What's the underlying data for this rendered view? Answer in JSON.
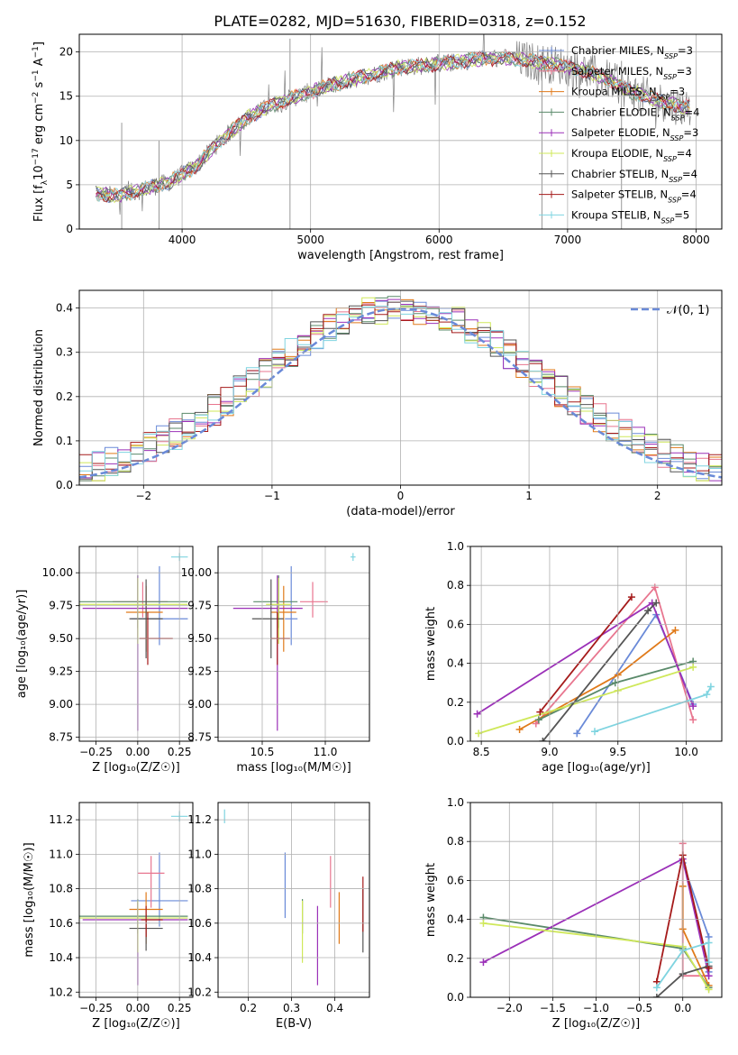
{
  "figure": {
    "title": "PLATE=0282, MJD=51630, FIBERID=0318, z=0.152"
  },
  "models": [
    {
      "name": "Chabrier MILES",
      "nssp": "3",
      "color": "#6a8ad8"
    },
    {
      "name": "Salpeter MILES",
      "nssp": "3",
      "color": "#e8768f"
    },
    {
      "name": "Kroupa MILES",
      "nssp": "3",
      "color": "#e07a1a"
    },
    {
      "name": "Chabrier ELODIE",
      "nssp": "4",
      "color": "#5a8a6a"
    },
    {
      "name": "Salpeter ELODIE",
      "nssp": "3",
      "color": "#9b30b8"
    },
    {
      "name": "Kroupa ELODIE",
      "nssp": "4",
      "color": "#cfe85a"
    },
    {
      "name": "Chabrier STELIB",
      "nssp": "4",
      "color": "#555555"
    },
    {
      "name": "Salpeter STELIB",
      "nssp": "4",
      "color": "#a51a1a"
    },
    {
      "name": "Kroupa STELIB",
      "nssp": "5",
      "color": "#7fd4e0"
    }
  ],
  "chart_data": [
    {
      "id": "spectrum",
      "type": "line",
      "xlabel": "wavelength [Angstrom, rest frame]",
      "ylabel": "Flux [f",
      "xlim": [
        3200,
        8200
      ],
      "ylim": [
        0,
        22
      ],
      "xticks": [
        4000,
        5000,
        6000,
        7000,
        8000
      ],
      "yticks": [
        0,
        5,
        10,
        15,
        20
      ],
      "data_color": "#808080",
      "x": [
        3350,
        3500,
        3700,
        3900,
        4100,
        4300,
        4500,
        4700,
        4900,
        5100,
        5300,
        5500,
        5700,
        5900,
        6100,
        6300,
        6500,
        6700,
        6900,
        7100,
        7300,
        7500,
        7700,
        7900
      ],
      "y": [
        4.0,
        3.7,
        4.5,
        5.3,
        7.0,
        10.0,
        12.5,
        14.0,
        15.0,
        16.0,
        16.8,
        17.5,
        18.3,
        18.5,
        18.8,
        19.2,
        19.3,
        19.0,
        18.6,
        18.0,
        17.0,
        15.5,
        14.5,
        13.8
      ],
      "legend": "upper right"
    },
    {
      "id": "residuals",
      "type": "area",
      "xlabel": "(data-model)/error",
      "ylabel": "Normed distribution",
      "xlim": [
        -2.5,
        2.5
      ],
      "ylim": [
        0,
        0.44
      ],
      "xticks": [
        -2,
        -1,
        0,
        1,
        2
      ],
      "yticks": [
        0.0,
        0.1,
        0.2,
        0.3,
        0.4
      ],
      "bin_width": 0.1,
      "normal_curve": {
        "label": "𝒩(0, 1)",
        "mean": 0,
        "sigma": 1,
        "color": "#6a8ad8"
      },
      "legend": "upper right"
    },
    {
      "id": "age_vs_Z",
      "type": "scatter",
      "xlabel": "Z [log₁₀(Z/Z☉)]",
      "ylabel": "age  [log₁₀(age/yr)]",
      "xlim": [
        -0.35,
        0.33
      ],
      "ylim": [
        8.72,
        10.2
      ],
      "xticks": [
        -0.25,
        0.0,
        0.25
      ],
      "yticks": [
        8.75,
        9.0,
        9.25,
        9.5,
        9.75,
        10.0
      ],
      "points": [
        {
          "model": 0,
          "x": 0.13,
          "y": 9.65,
          "xerr": [
            0.17,
            0.17
          ],
          "yerr": [
            0.2,
            0.4
          ]
        },
        {
          "model": 1,
          "x": 0.03,
          "y": 9.78,
          "xerr": [
            0.18,
            0.15
          ],
          "yerr": [
            0.12,
            0.15
          ]
        },
        {
          "model": 2,
          "x": 0.05,
          "y": 9.7,
          "xerr": [
            0.12,
            0.1
          ],
          "yerr": [
            0.3,
            0.2
          ]
        },
        {
          "model": 3,
          "x": 0.0,
          "y": 9.78,
          "xerr": [
            0.35,
            0.3
          ],
          "yerr": [
            0.2,
            0.2
          ]
        },
        {
          "model": 4,
          "x": 0.0,
          "y": 9.73,
          "xerr": [
            0.33,
            0.3
          ],
          "yerr": [
            0.93,
            0.25
          ]
        },
        {
          "model": 5,
          "x": 0.0,
          "y": 9.76,
          "xerr": [
            0.35,
            0.3
          ],
          "yerr": [
            0.3,
            0.2
          ]
        },
        {
          "model": 6,
          "x": 0.05,
          "y": 9.65,
          "xerr": [
            0.1,
            0.1
          ],
          "yerr": [
            0.3,
            0.3
          ]
        },
        {
          "model": 7,
          "x": 0.06,
          "y": 9.5,
          "xerr": [
            0.05,
            0.15
          ],
          "yerr": [
            0.2,
            0.2
          ]
        },
        {
          "model": 8,
          "x": 0.25,
          "y": 10.12,
          "xerr": [
            0.05,
            0.05
          ],
          "yerr": [
            0.03,
            0.03
          ]
        }
      ]
    },
    {
      "id": "age_vs_mass",
      "type": "scatter",
      "xlabel": "mass [log₁₀(M/M☉)]",
      "ylabel": "",
      "xlim": [
        10.15,
        11.35
      ],
      "ylim": [
        8.72,
        10.2
      ],
      "xticks": [
        10.5,
        11.0
      ],
      "yticks": [
        8.75,
        9.0,
        9.25,
        9.5,
        9.75,
        10.0
      ],
      "points": [
        {
          "model": 0,
          "x": 10.73,
          "y": 9.65,
          "xerr": [
            0.05,
            0.05
          ],
          "yerr": [
            0.2,
            0.4
          ]
        },
        {
          "model": 1,
          "x": 10.9,
          "y": 9.78,
          "xerr": [
            0.1,
            0.12
          ],
          "yerr": [
            0.12,
            0.15
          ]
        },
        {
          "model": 2,
          "x": 10.67,
          "y": 9.7,
          "xerr": [
            0.1,
            0.1
          ],
          "yerr": [
            0.3,
            0.2
          ]
        },
        {
          "model": 3,
          "x": 10.63,
          "y": 9.78,
          "xerr": [
            0.2,
            0.15
          ],
          "yerr": [
            0.2,
            0.2
          ]
        },
        {
          "model": 4,
          "x": 10.62,
          "y": 9.73,
          "xerr": [
            0.35,
            0.2
          ],
          "yerr": [
            0.93,
            0.25
          ]
        },
        {
          "model": 5,
          "x": 10.63,
          "y": 9.76,
          "xerr": [
            0.1,
            0.1
          ],
          "yerr": [
            0.3,
            0.2
          ]
        },
        {
          "model": 6,
          "x": 10.57,
          "y": 9.65,
          "xerr": [
            0.15,
            0.1
          ],
          "yerr": [
            0.3,
            0.3
          ]
        },
        {
          "model": 7,
          "x": 10.62,
          "y": 9.5,
          "xerr": [
            0.05,
            0.1
          ],
          "yerr": [
            0.2,
            0.2
          ]
        },
        {
          "model": 8,
          "x": 11.22,
          "y": 10.12,
          "xerr": [
            0.02,
            0.02
          ],
          "yerr": [
            0.03,
            0.03
          ]
        }
      ]
    },
    {
      "id": "massweight_vs_age",
      "type": "line",
      "xlabel": "age  [log₁₀(age/yr)]",
      "ylabel": "mass weight",
      "xlim": [
        8.42,
        10.26
      ],
      "ylim": [
        0,
        1.0
      ],
      "xticks": [
        8.5,
        9.0,
        9.5,
        10.0
      ],
      "yticks": [
        0.0,
        0.2,
        0.4,
        0.6,
        0.8,
        1.0
      ],
      "series": [
        {
          "model": 0,
          "x": [
            9.2,
            9.78,
            10.05
          ],
          "y": [
            0.04,
            0.65,
            0.19
          ]
        },
        {
          "model": 1,
          "x": [
            8.9,
            9.77,
            10.05
          ],
          "y": [
            0.09,
            0.79,
            0.11
          ]
        },
        {
          "model": 2,
          "x": [
            8.78,
            9.5,
            9.92
          ],
          "y": [
            0.06,
            0.34,
            0.57
          ]
        },
        {
          "model": 3,
          "x": [
            8.92,
            9.48,
            10.05
          ],
          "y": [
            0.11,
            0.3,
            0.41
          ]
        },
        {
          "model": 4,
          "x": [
            8.47,
            9.75,
            10.05
          ],
          "y": [
            0.14,
            0.71,
            0.18
          ]
        },
        {
          "model": 5,
          "x": [
            8.48,
            9.5,
            10.05
          ],
          "y": [
            0.04,
            0.26,
            0.38
          ]
        },
        {
          "model": 6,
          "x": [
            8.95,
            9.72,
            9.78
          ],
          "y": [
            0.0,
            0.67,
            0.71
          ]
        },
        {
          "model": 7,
          "x": [
            8.93,
            9.6
          ],
          "y": [
            0.15,
            0.74
          ]
        },
        {
          "model": 8,
          "x": [
            9.33,
            10.15,
            10.18
          ],
          "y": [
            0.05,
            0.24,
            0.28
          ]
        }
      ]
    },
    {
      "id": "mass_vs_Z",
      "type": "scatter",
      "xlabel": "Z [log₁₀(Z/Z☉)]",
      "ylabel": "mass [log₁₀(M/M☉)]",
      "xlim": [
        -0.35,
        0.33
      ],
      "ylim": [
        10.17,
        11.3
      ],
      "xticks": [
        -0.25,
        0.0,
        0.25
      ],
      "yticks": [
        10.2,
        10.4,
        10.6,
        10.8,
        11.0,
        11.2
      ],
      "points": [
        {
          "model": 0,
          "x": 0.13,
          "y": 10.73,
          "xerr": [
            0.17,
            0.17
          ],
          "yerr": [
            0.15,
            0.28
          ]
        },
        {
          "model": 1,
          "x": 0.08,
          "y": 10.89,
          "xerr": [
            0.08,
            0.08
          ],
          "yerr": [
            0.2,
            0.1
          ]
        },
        {
          "model": 2,
          "x": 0.05,
          "y": 10.68,
          "xerr": [
            0.1,
            0.1
          ],
          "yerr": [
            0.2,
            0.1
          ]
        },
        {
          "model": 3,
          "x": 0.0,
          "y": 10.64,
          "xerr": [
            0.35,
            0.3
          ],
          "yerr": [
            0.1,
            0.1
          ]
        },
        {
          "model": 4,
          "x": 0.0,
          "y": 10.62,
          "xerr": [
            0.33,
            0.3
          ],
          "yerr": [
            0.38,
            0.1
          ]
        },
        {
          "model": 5,
          "x": 0.0,
          "y": 10.63,
          "xerr": [
            0.35,
            0.3
          ],
          "yerr": [
            0.2,
            0.1
          ]
        },
        {
          "model": 6,
          "x": 0.05,
          "y": 10.57,
          "xerr": [
            0.1,
            0.1
          ],
          "yerr": [
            0.13,
            0.08
          ]
        },
        {
          "model": 7,
          "x": 0.05,
          "y": 10.62,
          "xerr": [
            0.03,
            0.1
          ],
          "yerr": [
            0.1,
            0.08
          ]
        },
        {
          "model": 8,
          "x": 0.25,
          "y": 11.22,
          "xerr": [
            0.05,
            0.05
          ],
          "yerr": [
            0.03,
            0.03
          ]
        }
      ]
    },
    {
      "id": "mass_vs_EBV",
      "type": "scatter",
      "xlabel": "E(B-V)",
      "ylabel": "",
      "xlim": [
        0.13,
        0.48
      ],
      "ylim": [
        10.17,
        11.3
      ],
      "xticks": [
        0.2,
        0.3,
        0.4
      ],
      "yticks": [
        10.2,
        10.4,
        10.6,
        10.8,
        11.0,
        11.2
      ],
      "points": [
        {
          "model": 0,
          "x": 0.285,
          "y": 10.73,
          "xerr": [
            0,
            0
          ],
          "yerr": [
            0.1,
            0.28
          ]
        },
        {
          "model": 1,
          "x": 0.39,
          "y": 10.89,
          "xerr": [
            0,
            0
          ],
          "yerr": [
            0.2,
            0.1
          ]
        },
        {
          "model": 2,
          "x": 0.41,
          "y": 10.68,
          "xerr": [
            0,
            0
          ],
          "yerr": [
            0.2,
            0.1
          ]
        },
        {
          "model": 3,
          "x": 0.325,
          "y": 10.64,
          "xerr": [
            0,
            0
          ],
          "yerr": [
            0.1,
            0.1
          ]
        },
        {
          "model": 4,
          "x": 0.36,
          "y": 10.52,
          "xerr": [
            0,
            0
          ],
          "yerr": [
            0.28,
            0.18
          ]
        },
        {
          "model": 5,
          "x": 0.325,
          "y": 10.55,
          "xerr": [
            0,
            0
          ],
          "yerr": [
            0.18,
            0.18
          ]
        },
        {
          "model": 6,
          "x": 0.465,
          "y": 10.6,
          "xerr": [
            0,
            0
          ],
          "yerr": [
            0.17,
            0.2
          ]
        },
        {
          "model": 7,
          "x": 0.465,
          "y": 10.7,
          "xerr": [
            0,
            0
          ],
          "yerr": [
            0.15,
            0.17
          ]
        },
        {
          "model": 8,
          "x": 0.145,
          "y": 11.22,
          "xerr": [
            0,
            0
          ],
          "yerr": [
            0.04,
            0.04
          ]
        }
      ]
    },
    {
      "id": "massweight_vs_Z",
      "type": "line",
      "xlabel": "Z [log₁₀(Z/Z☉)]",
      "ylabel": "mass weight",
      "xlim": [
        -2.45,
        0.45
      ],
      "ylim": [
        0,
        1.0
      ],
      "xticks": [
        -2.0,
        -1.5,
        -1.0,
        -0.5,
        0.0
      ],
      "yticks": [
        0.0,
        0.2,
        0.4,
        0.6,
        0.8,
        1.0
      ],
      "series": [
        {
          "model": 0,
          "x": [
            0.0,
            0.3,
            0.3
          ],
          "y": [
            0.69,
            0.31,
            0.13
          ]
        },
        {
          "model": 1,
          "x": [
            0.0,
            0.0,
            0.3
          ],
          "y": [
            0.79,
            0.11,
            0.11
          ]
        },
        {
          "model": 2,
          "x": [
            0.0,
            0.0,
            0.3
          ],
          "y": [
            0.57,
            0.35,
            0.06
          ]
        },
        {
          "model": 3,
          "x": [
            -2.3,
            0.0,
            0.3
          ],
          "y": [
            0.41,
            0.25,
            0.05
          ]
        },
        {
          "model": 4,
          "x": [
            -2.3,
            0.0,
            0.3
          ],
          "y": [
            0.18,
            0.71,
            0.11
          ]
        },
        {
          "model": 5,
          "x": [
            -2.3,
            0.0,
            0.3
          ],
          "y": [
            0.38,
            0.26,
            0.04
          ]
        },
        {
          "model": 6,
          "x": [
            -0.3,
            0.0,
            0.3
          ],
          "y": [
            0.0,
            0.12,
            0.16
          ]
        },
        {
          "model": 7,
          "x": [
            -0.3,
            0.0,
            0.3
          ],
          "y": [
            0.08,
            0.73,
            0.15
          ]
        },
        {
          "model": 8,
          "x": [
            -0.3,
            0.0,
            0.3,
            0.3
          ],
          "y": [
            0.05,
            0.24,
            0.28,
            0.18
          ]
        }
      ]
    }
  ]
}
